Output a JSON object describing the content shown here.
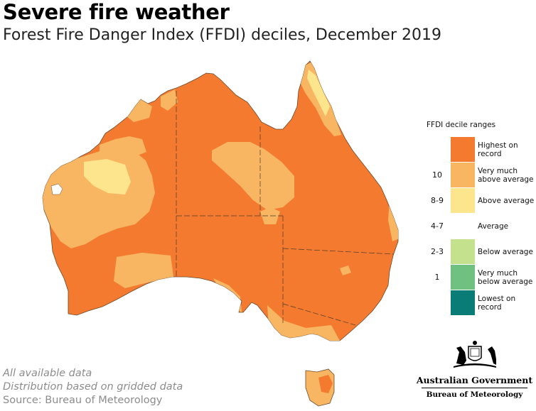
{
  "title": "Severe fire weather",
  "subtitle": "Forest Fire Danger Index (FFDI) deciles,  December 2019",
  "legend": {
    "title": "FFDI decile ranges",
    "items": [
      {
        "code": "",
        "label": "Highest on record",
        "color": "#f47a30"
      },
      {
        "code": "10",
        "label": "Very much above average",
        "color": "#f8b662"
      },
      {
        "code": "8-9",
        "label": "Above average",
        "color": "#fde58e"
      },
      {
        "code": "4-7",
        "label": "Average",
        "color": "#ffffff"
      },
      {
        "code": "2-3",
        "label": "Below average",
        "color": "#c4e28e"
      },
      {
        "code": "1",
        "label": "Very much below average",
        "color": "#6fc081"
      },
      {
        "code": "",
        "label": "Lowest on record",
        "color": "#0a7c78"
      }
    ]
  },
  "notes": {
    "line1": "All available data",
    "line2": "Distribution based on gridded data",
    "source": "Source: Bureau of Meteorology"
  },
  "logo": {
    "line1": "Australian Government",
    "line2": "Bureau of Meteorology"
  }
}
